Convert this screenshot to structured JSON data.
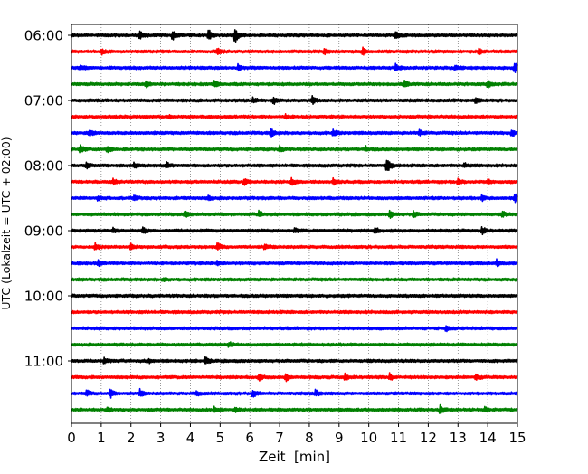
{
  "chart_data": {
    "type": "line",
    "title": "",
    "xlabel": "Zeit  [min]",
    "ylabel": "UTC (Lokalzeit = UTC + 02:00)",
    "xlim": [
      0,
      15
    ],
    "x_ticks": [
      "0",
      "1",
      "2",
      "3",
      "4",
      "5",
      "6",
      "7",
      "8",
      "9",
      "10",
      "11",
      "12",
      "13",
      "14",
      "15"
    ],
    "y_tick_labels": [
      "06:00",
      "07:00",
      "08:00",
      "09:00",
      "10:00",
      "11:00"
    ],
    "grid": "vertical dotted",
    "series_colors": [
      "#000000",
      "#ff0000",
      "#0000ff",
      "#008000"
    ],
    "traces": [
      {
        "start": "06:00",
        "color": "#000000",
        "events": [
          [
            2.3,
            0.5
          ],
          [
            3.4,
            0.6
          ],
          [
            4.6,
            0.8
          ],
          [
            5.5,
            1.0
          ],
          [
            10.9,
            0.6
          ]
        ]
      },
      {
        "start": "06:15",
        "color": "#ff0000",
        "events": [
          [
            1.0,
            0.3
          ],
          [
            4.9,
            0.4
          ],
          [
            8.5,
            0.4
          ],
          [
            9.8,
            0.5
          ],
          [
            13.7,
            0.3
          ]
        ]
      },
      {
        "start": "06:30",
        "color": "#0000ff",
        "events": [
          [
            0.3,
            0.3
          ],
          [
            5.6,
            0.4
          ],
          [
            10.9,
            0.4
          ],
          [
            12.9,
            0.3
          ],
          [
            14.9,
            0.8
          ]
        ]
      },
      {
        "start": "06:45",
        "color": "#008000",
        "events": [
          [
            2.5,
            0.4
          ],
          [
            4.8,
            0.4
          ],
          [
            11.2,
            0.4
          ],
          [
            14.0,
            0.4
          ]
        ]
      },
      {
        "start": "07:00",
        "color": "#000000",
        "events": [
          [
            6.1,
            0.4
          ],
          [
            6.8,
            0.4
          ],
          [
            8.1,
            0.5
          ],
          [
            13.6,
            0.4
          ]
        ]
      },
      {
        "start": "07:15",
        "color": "#ff0000",
        "events": [
          [
            3.3,
            0.2
          ],
          [
            7.2,
            0.2
          ]
        ]
      },
      {
        "start": "07:30",
        "color": "#0000ff",
        "events": [
          [
            0.6,
            0.4
          ],
          [
            6.7,
            0.6
          ],
          [
            8.8,
            0.4
          ],
          [
            11.7,
            0.3
          ],
          [
            14.8,
            0.5
          ]
        ]
      },
      {
        "start": "07:45",
        "color": "#008000",
        "events": [
          [
            0.3,
            0.5
          ],
          [
            1.2,
            0.4
          ],
          [
            7.0,
            0.3
          ],
          [
            9.9,
            0.3
          ]
        ]
      },
      {
        "start": "08:00",
        "color": "#000000",
        "events": [
          [
            0.5,
            0.3
          ],
          [
            2.1,
            0.3
          ],
          [
            3.2,
            0.4
          ],
          [
            10.6,
            1.0
          ],
          [
            13.2,
            0.3
          ]
        ]
      },
      {
        "start": "08:15",
        "color": "#ff0000",
        "events": [
          [
            1.4,
            0.3
          ],
          [
            5.8,
            0.4
          ],
          [
            7.4,
            0.4
          ],
          [
            8.8,
            0.4
          ],
          [
            13.0,
            0.4
          ],
          [
            14.0,
            0.3
          ]
        ]
      },
      {
        "start": "08:30",
        "color": "#0000ff",
        "events": [
          [
            0.9,
            0.3
          ],
          [
            2.1,
            0.3
          ],
          [
            4.6,
            0.3
          ],
          [
            13.8,
            0.3
          ],
          [
            14.9,
            0.6
          ]
        ]
      },
      {
        "start": "08:45",
        "color": "#008000",
        "events": [
          [
            3.8,
            0.4
          ],
          [
            6.3,
            0.4
          ],
          [
            10.7,
            0.4
          ],
          [
            11.5,
            0.4
          ],
          [
            14.5,
            0.3
          ]
        ]
      },
      {
        "start": "09:00",
        "color": "#000000",
        "events": [
          [
            1.4,
            0.3
          ],
          [
            2.4,
            0.4
          ],
          [
            7.5,
            0.3
          ],
          [
            10.2,
            0.4
          ],
          [
            13.8,
            0.5
          ]
        ]
      },
      {
        "start": "09:15",
        "color": "#ff0000",
        "events": [
          [
            0.8,
            0.4
          ],
          [
            2.0,
            0.3
          ],
          [
            4.9,
            0.5
          ],
          [
            6.5,
            0.3
          ]
        ]
      },
      {
        "start": "09:30",
        "color": "#0000ff",
        "events": [
          [
            0.9,
            0.3
          ],
          [
            4.9,
            0.3
          ],
          [
            14.3,
            0.4
          ]
        ]
      },
      {
        "start": "09:45",
        "color": "#008000",
        "events": [
          [
            3.1,
            0.2
          ]
        ]
      },
      {
        "start": "10:00",
        "color": "#000000",
        "events": []
      },
      {
        "start": "10:15",
        "color": "#ff0000",
        "events": []
      },
      {
        "start": "10:30",
        "color": "#0000ff",
        "events": [
          [
            12.6,
            0.3
          ]
        ]
      },
      {
        "start": "10:45",
        "color": "#008000",
        "events": [
          [
            5.3,
            0.3
          ]
        ]
      },
      {
        "start": "11:00",
        "color": "#000000",
        "events": [
          [
            1.1,
            0.4
          ],
          [
            2.6,
            0.3
          ],
          [
            4.5,
            0.4
          ]
        ]
      },
      {
        "start": "11:15",
        "color": "#ff0000",
        "events": [
          [
            6.3,
            0.4
          ],
          [
            7.2,
            0.5
          ],
          [
            9.2,
            0.4
          ],
          [
            10.7,
            0.4
          ],
          [
            13.6,
            0.3
          ]
        ]
      },
      {
        "start": "11:30",
        "color": "#0000ff",
        "events": [
          [
            0.5,
            0.4
          ],
          [
            1.3,
            0.6
          ],
          [
            2.3,
            0.4
          ],
          [
            4.2,
            0.3
          ],
          [
            6.1,
            0.5
          ],
          [
            8.2,
            0.4
          ]
        ]
      },
      {
        "start": "11:45",
        "color": "#008000",
        "events": [
          [
            1.2,
            0.3
          ],
          [
            4.8,
            0.3
          ],
          [
            5.5,
            0.3
          ],
          [
            12.4,
            0.5
          ],
          [
            13.9,
            0.3
          ]
        ]
      }
    ]
  }
}
